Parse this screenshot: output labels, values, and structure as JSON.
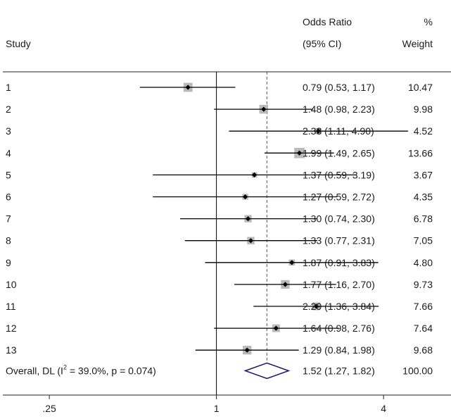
{
  "header": {
    "study_label": "Study",
    "or_label_line1": "Odds Ratio",
    "or_label_line2": "(95% CI)",
    "weight_label_line1": "%",
    "weight_label_line2": "Weight"
  },
  "chart_data": {
    "type": "forest",
    "scale": "log",
    "xlim": [
      0.17,
      7.0
    ],
    "null_value": 1,
    "overall_line_value": 1.52,
    "x_ticks": [
      {
        "value": 0.25,
        "label": ".25"
      },
      {
        "value": 1,
        "label": "1"
      },
      {
        "value": 4,
        "label": "4"
      }
    ],
    "studies": [
      {
        "label": "1",
        "or": 0.79,
        "lo": 0.53,
        "hi": 1.17,
        "ci_text": "0.79 (0.53, 1.17)",
        "weight": 10.47,
        "weight_text": "10.47"
      },
      {
        "label": "2",
        "or": 1.48,
        "lo": 0.98,
        "hi": 2.23,
        "ci_text": "1.48 (0.98, 2.23)",
        "weight": 9.98,
        "weight_text": "9.98"
      },
      {
        "label": "3",
        "or": 2.33,
        "lo": 1.11,
        "hi": 4.9,
        "ci_text": "2.33 (1.11, 4.90)",
        "weight": 4.52,
        "weight_text": "4.52"
      },
      {
        "label": "4",
        "or": 1.99,
        "lo": 1.49,
        "hi": 2.65,
        "ci_text": "1.99 (1.49, 2.65)",
        "weight": 13.66,
        "weight_text": "13.66"
      },
      {
        "label": "5",
        "or": 1.37,
        "lo": 0.59,
        "hi": 3.19,
        "ci_text": "1.37 (0.59, 3.19)",
        "weight": 3.67,
        "weight_text": "3.67"
      },
      {
        "label": "6",
        "or": 1.27,
        "lo": 0.59,
        "hi": 2.72,
        "ci_text": "1.27 (0.59, 2.72)",
        "weight": 4.35,
        "weight_text": "4.35"
      },
      {
        "label": "7",
        "or": 1.3,
        "lo": 0.74,
        "hi": 2.3,
        "ci_text": "1.30 (0.74, 2.30)",
        "weight": 6.78,
        "weight_text": "6.78"
      },
      {
        "label": "8",
        "or": 1.33,
        "lo": 0.77,
        "hi": 2.31,
        "ci_text": "1.33 (0.77, 2.31)",
        "weight": 7.05,
        "weight_text": "7.05"
      },
      {
        "label": "9",
        "or": 1.87,
        "lo": 0.91,
        "hi": 3.83,
        "ci_text": "1.87 (0.91, 3.83)",
        "weight": 4.8,
        "weight_text": "4.80"
      },
      {
        "label": "10",
        "or": 1.77,
        "lo": 1.16,
        "hi": 2.7,
        "ci_text": "1.77 (1.16, 2.70)",
        "weight": 9.73,
        "weight_text": "9.73"
      },
      {
        "label": "11",
        "or": 2.29,
        "lo": 1.36,
        "hi": 3.84,
        "ci_text": "2.29 (1.36, 3.84)",
        "weight": 7.66,
        "weight_text": "7.66"
      },
      {
        "label": "12",
        "or": 1.64,
        "lo": 0.98,
        "hi": 2.76,
        "ci_text": "1.64 (0.98, 2.76)",
        "weight": 7.64,
        "weight_text": "7.64"
      },
      {
        "label": "13",
        "or": 1.29,
        "lo": 0.84,
        "hi": 1.98,
        "ci_text": "1.29 (0.84, 1.98)",
        "weight": 9.68,
        "weight_text": "9.68"
      }
    ],
    "overall": {
      "label_prefix": "Overall, DL (I",
      "label_sup": "2",
      "label_suffix": " = 39.0%, p = 0.074)",
      "or": 1.52,
      "lo": 1.27,
      "hi": 1.82,
      "ci_text": "1.52 (1.27, 1.82)",
      "weight_text": "100.00"
    },
    "colors": {
      "box": "#b9b9b9",
      "point": "#000000",
      "ci_line": "#000000",
      "null_line": "#000000",
      "overall_line": "#8b3a4a",
      "diamond": "#1a1a6e",
      "frame": "#222222"
    }
  }
}
